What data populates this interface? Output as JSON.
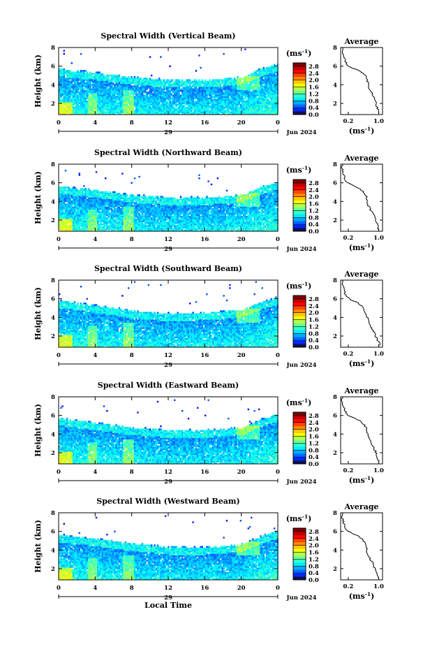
{
  "figure": {
    "xlabel": "Local Time",
    "day_label": "29",
    "month_label": "Jun 2024",
    "ylabel": "Height (km)",
    "colorbar_unit": "(ms",
    "colorbar_unit_exp": "-1",
    "colorbar_unit_close": ")",
    "avg_title": "Average",
    "avg_unit": "(ms",
    "avg_unit_exp": "-1",
    "avg_unit_close": ")"
  },
  "chart_data": [
    {
      "type": "heatmap",
      "title": "Spectral Width (Vertical Beam)",
      "xlabel": "Local Time",
      "ylabel": "Height (km)",
      "x_ticks": [
        "0",
        "4",
        "8",
        "12",
        "16",
        "20",
        "0"
      ],
      "y_ticks": [
        "2",
        "4",
        "6",
        "8"
      ],
      "xlim": [
        0,
        24
      ],
      "ylim": [
        0.8,
        8
      ],
      "colorbar": {
        "unit": "ms-1",
        "ticks": [
          "0.0",
          "0.4",
          "0.8",
          "1.2",
          "1.6",
          "2.0",
          "2.4",
          "2.8"
        ],
        "range": [
          0,
          3.0
        ]
      },
      "echo_top_km": {
        "x": [
          0,
          4,
          8,
          12,
          16,
          20,
          22,
          24
        ],
        "y": [
          5.8,
          5.4,
          4.9,
          4.6,
          4.6,
          4.9,
          5.8,
          6.3
        ]
      },
      "average": {
        "title": "Average",
        "x_ticks": [
          "0.2",
          "1.0"
        ],
        "y_ticks": [
          "2",
          "4",
          "6",
          "8"
        ],
        "xlim": [
          0,
          1.1
        ],
        "ylim": [
          0.8,
          8
        ],
        "height_km": [
          1.0,
          1.5,
          2.0,
          2.5,
          3.0,
          3.5,
          4.0,
          4.5,
          5.0,
          5.5,
          6.0,
          6.5,
          7.0,
          7.5,
          8.0
        ],
        "width_ms": [
          1.02,
          0.97,
          0.93,
          0.9,
          0.84,
          0.76,
          0.72,
          0.7,
          0.65,
          0.5,
          0.2,
          0.12,
          0.08,
          0.05,
          0.03
        ]
      }
    },
    {
      "type": "heatmap",
      "title": "Spectral Width (Northward Beam)",
      "xlabel": "Local Time",
      "ylabel": "Height (km)",
      "x_ticks": [
        "0",
        "4",
        "8",
        "12",
        "16",
        "20",
        "0"
      ],
      "y_ticks": [
        "2",
        "4",
        "6",
        "8"
      ],
      "xlim": [
        0,
        24
      ],
      "ylim": [
        0.8,
        8
      ],
      "colorbar": {
        "unit": "ms-1",
        "ticks": [
          "0.0",
          "0.4",
          "0.8",
          "1.2",
          "1.6",
          "2.0",
          "2.4",
          "2.8"
        ],
        "range": [
          0,
          3.0
        ]
      },
      "echo_top_km": {
        "x": [
          0,
          4,
          8,
          12,
          16,
          20,
          22,
          24
        ],
        "y": [
          5.7,
          5.3,
          4.8,
          4.5,
          4.5,
          4.8,
          5.6,
          6.2
        ]
      },
      "average": {
        "title": "Average",
        "x_ticks": [
          "0.2",
          "1.0"
        ],
        "y_ticks": [
          "2",
          "4",
          "6",
          "8"
        ],
        "xlim": [
          0,
          1.1
        ],
        "ylim": [
          0.8,
          8
        ],
        "height_km": [
          1.0,
          1.5,
          2.0,
          2.5,
          3.0,
          3.5,
          4.0,
          4.5,
          5.0,
          5.5,
          6.0,
          6.5,
          7.0,
          7.5,
          8.0
        ],
        "width_ms": [
          1.0,
          0.96,
          0.92,
          0.88,
          0.8,
          0.73,
          0.7,
          0.68,
          0.6,
          0.45,
          0.18,
          0.1,
          0.07,
          0.04,
          0.03
        ]
      }
    },
    {
      "type": "heatmap",
      "title": "Spectral Width (Southward Beam)",
      "xlabel": "Local Time",
      "ylabel": "Height (km)",
      "x_ticks": [
        "0",
        "4",
        "8",
        "12",
        "16",
        "20",
        "0"
      ],
      "y_ticks": [
        "2",
        "4",
        "6",
        "8"
      ],
      "xlim": [
        0,
        24
      ],
      "ylim": [
        0.8,
        8
      ],
      "colorbar": {
        "unit": "ms-1",
        "ticks": [
          "0.0",
          "0.4",
          "0.8",
          "1.2",
          "1.6",
          "2.0",
          "2.4",
          "2.8"
        ],
        "range": [
          0,
          3.0
        ]
      },
      "echo_top_km": {
        "x": [
          0,
          4,
          8,
          12,
          16,
          20,
          22,
          24
        ],
        "y": [
          5.9,
          5.4,
          4.8,
          4.5,
          4.6,
          4.9,
          5.7,
          6.3
        ]
      },
      "average": {
        "title": "Average",
        "x_ticks": [
          "0.2",
          "1.0"
        ],
        "y_ticks": [
          "2",
          "4",
          "6",
          "8"
        ],
        "xlim": [
          0,
          1.1
        ],
        "ylim": [
          0.8,
          8
        ],
        "height_km": [
          1.0,
          1.5,
          2.0,
          2.5,
          3.0,
          3.5,
          4.0,
          4.5,
          5.0,
          5.5,
          6.0,
          6.5,
          7.0,
          7.5,
          8.0
        ],
        "width_ms": [
          1.03,
          0.98,
          0.92,
          0.86,
          0.8,
          0.74,
          0.7,
          0.66,
          0.6,
          0.48,
          0.22,
          0.12,
          0.08,
          0.05,
          0.03
        ]
      }
    },
    {
      "type": "heatmap",
      "title": "Spectral Width (Eastward Beam)",
      "xlabel": "Local Time",
      "ylabel": "Height (km)",
      "x_ticks": [
        "0",
        "4",
        "8",
        "12",
        "16",
        "20",
        "0"
      ],
      "y_ticks": [
        "2",
        "4",
        "6",
        "8"
      ],
      "xlim": [
        0,
        24
      ],
      "ylim": [
        0.8,
        8
      ],
      "colorbar": {
        "unit": "ms-1",
        "ticks": [
          "0.0",
          "0.4",
          "0.8",
          "1.2",
          "1.6",
          "2.0",
          "2.4",
          "2.8"
        ],
        "range": [
          0,
          3.0
        ]
      },
      "echo_top_km": {
        "x": [
          0,
          4,
          8,
          12,
          16,
          20,
          22,
          24
        ],
        "y": [
          5.8,
          5.3,
          4.8,
          4.5,
          4.5,
          4.8,
          5.6,
          6.3
        ]
      },
      "average": {
        "title": "Average",
        "x_ticks": [
          "0.2",
          "1.0"
        ],
        "y_ticks": [
          "2",
          "4",
          "6",
          "8"
        ],
        "xlim": [
          0,
          1.1
        ],
        "ylim": [
          0.8,
          8
        ],
        "height_km": [
          1.0,
          1.5,
          2.0,
          2.5,
          3.0,
          3.5,
          4.0,
          4.5,
          5.0,
          5.5,
          6.0,
          6.5,
          7.0,
          7.5,
          8.0
        ],
        "width_ms": [
          1.01,
          0.97,
          0.93,
          0.87,
          0.8,
          0.74,
          0.71,
          0.68,
          0.62,
          0.47,
          0.2,
          0.11,
          0.07,
          0.04,
          0.03
        ]
      }
    },
    {
      "type": "heatmap",
      "title": "Spectral Width (Westward Beam)",
      "xlabel": "Local Time",
      "ylabel": "Height (km)",
      "x_ticks": [
        "0",
        "4",
        "8",
        "12",
        "16",
        "20",
        "0"
      ],
      "y_ticks": [
        "2",
        "4",
        "6",
        "8"
      ],
      "xlim": [
        0,
        24
      ],
      "ylim": [
        0.8,
        8
      ],
      "colorbar": {
        "unit": "ms-1",
        "ticks": [
          "0.0",
          "0.4",
          "0.8",
          "1.2",
          "1.6",
          "2.0",
          "2.4",
          "2.8"
        ],
        "range": [
          0,
          3.0
        ]
      },
      "echo_top_km": {
        "x": [
          0,
          4,
          8,
          12,
          16,
          20,
          22,
          24
        ],
        "y": [
          5.7,
          5.3,
          4.8,
          4.4,
          4.4,
          4.7,
          5.5,
          6.2
        ]
      },
      "average": {
        "title": "Average",
        "x_ticks": [
          "0.2",
          "1.0"
        ],
        "y_ticks": [
          "2",
          "4",
          "6",
          "8"
        ],
        "xlim": [
          0,
          1.1
        ],
        "ylim": [
          0.8,
          8
        ],
        "height_km": [
          1.0,
          1.5,
          2.0,
          2.5,
          3.0,
          3.5,
          4.0,
          4.5,
          5.0,
          5.5,
          6.0,
          6.5,
          7.0,
          7.5,
          8.0
        ],
        "width_ms": [
          1.0,
          0.95,
          0.9,
          0.86,
          0.78,
          0.72,
          0.69,
          0.66,
          0.6,
          0.46,
          0.2,
          0.11,
          0.07,
          0.04,
          0.03
        ]
      }
    }
  ]
}
